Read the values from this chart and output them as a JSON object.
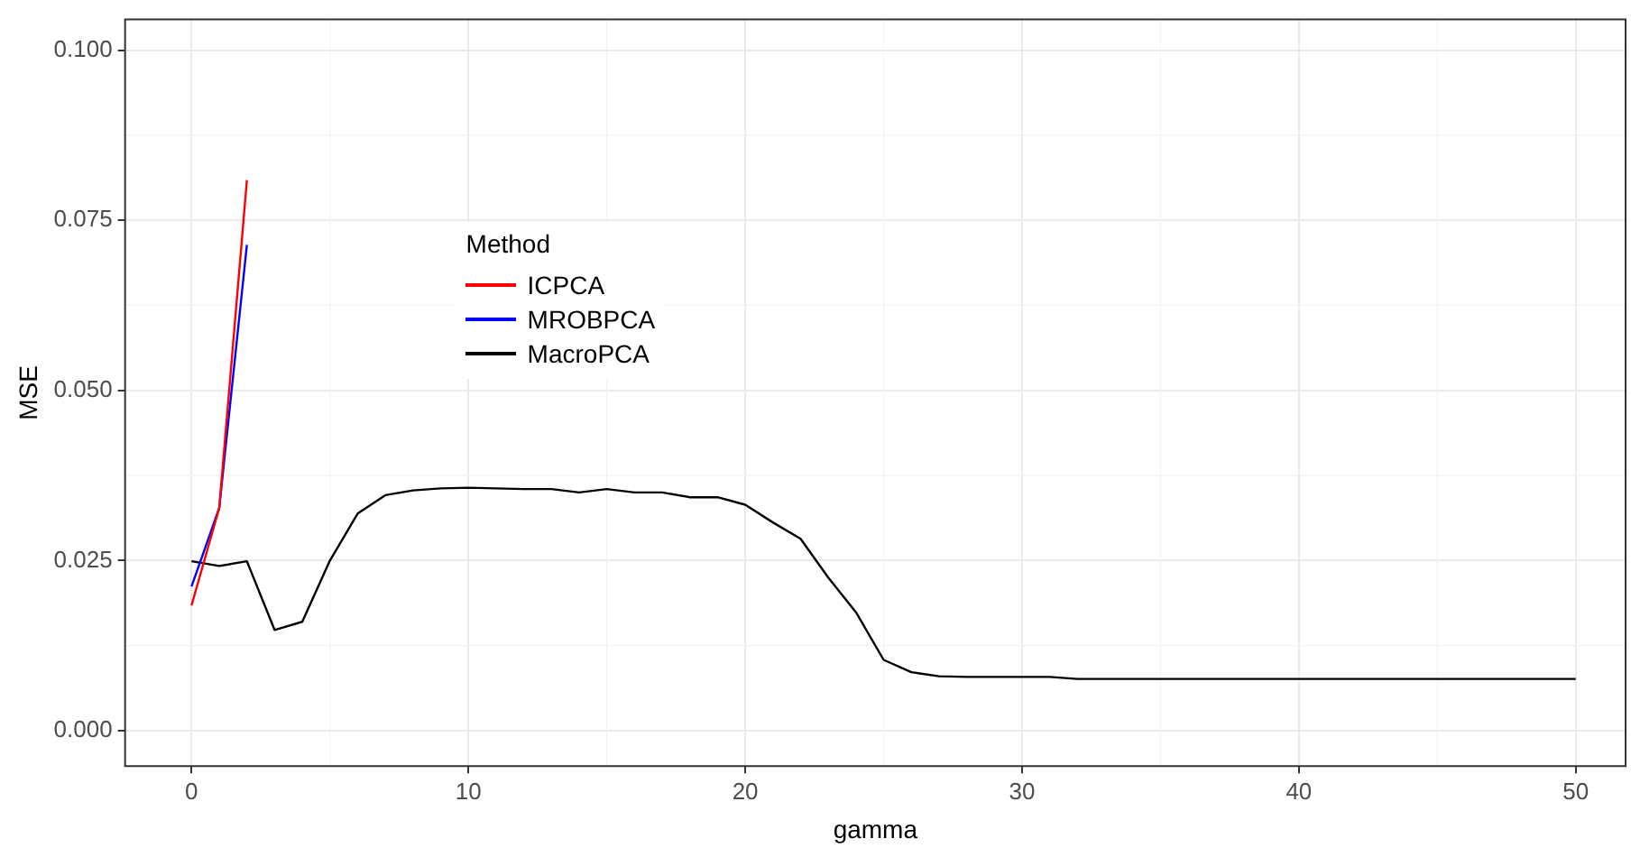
{
  "chart_data": {
    "type": "line",
    "xlabel": "gamma",
    "ylabel": "MSE",
    "legend_title": "Method",
    "legend": "top left",
    "grid": true,
    "marker": "none",
    "line_style": "solid",
    "xlim": [
      -2.4,
      51.8
    ],
    "xticks": [
      0,
      10,
      20,
      30,
      40,
      50
    ],
    "ylim": [
      -0.0052,
      0.1045
    ],
    "yticks": [
      {
        "value": 0,
        "label": "0.000"
      },
      {
        "value": 0.025,
        "label": "0.025"
      },
      {
        "value": 0.05,
        "label": "0.050"
      },
      {
        "value": 0.075,
        "label": "0.075"
      },
      {
        "value": 0.1,
        "label": "0.100"
      }
    ],
    "series": [
      {
        "name": "ICPCA",
        "color": "#ff0000",
        "x": [
          0,
          1,
          2
        ],
        "values": [
          0.0184,
          0.0327,
          0.0809
        ]
      },
      {
        "name": "MROBPCA",
        "color": "#0000ff",
        "x": [
          0,
          1,
          2
        ],
        "values": [
          0.0212,
          0.0327,
          0.0714
        ]
      },
      {
        "name": "MacroPCA",
        "color": "#000000",
        "x": [
          0,
          1,
          2,
          3,
          4,
          5,
          6,
          7,
          8,
          9,
          10,
          11,
          12,
          13,
          14,
          15,
          16,
          17,
          18,
          19,
          20,
          21,
          22,
          23,
          24,
          25,
          26,
          27,
          28,
          29,
          30,
          31,
          32,
          33,
          34,
          35,
          36,
          37,
          38,
          39,
          40,
          41,
          42,
          43,
          44,
          45,
          46,
          47,
          48,
          49,
          50
        ],
        "values": [
          0.0249,
          0.0242,
          0.0249,
          0.0148,
          0.016,
          0.025,
          0.0319,
          0.0346,
          0.0353,
          0.0356,
          0.0357,
          0.0356,
          0.0355,
          0.0355,
          0.035,
          0.0355,
          0.035,
          0.035,
          0.0343,
          0.0343,
          0.0332,
          0.0306,
          0.0282,
          0.0225,
          0.0174,
          0.0104,
          0.0086,
          0.008,
          0.0079,
          0.0079,
          0.0079,
          0.0079,
          0.0076,
          0.0076,
          0.0076,
          0.0076,
          0.0076,
          0.0076,
          0.0076,
          0.0076,
          0.0076,
          0.0076,
          0.0076,
          0.0076,
          0.0076,
          0.0076,
          0.0076,
          0.0076,
          0.0076,
          0.0076,
          0.0076
        ]
      }
    ]
  }
}
